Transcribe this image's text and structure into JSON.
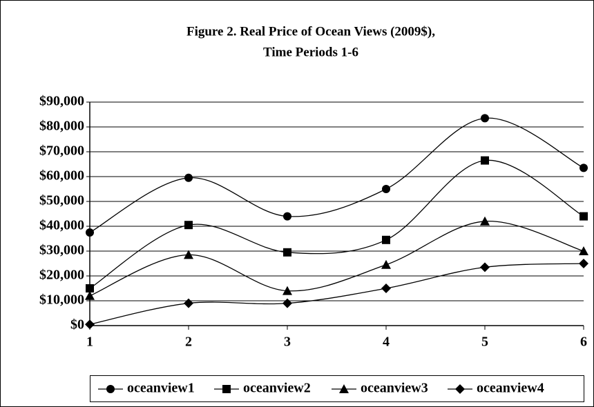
{
  "chart_data": {
    "type": "line",
    "title": "Figure 2.  Real Price of Ocean Views (2009$),",
    "subtitle": "Time Periods 1-6",
    "x": [
      1,
      2,
      3,
      4,
      5,
      6
    ],
    "xlim": [
      1,
      6
    ],
    "xticks": [
      1,
      2,
      3,
      4,
      5,
      6
    ],
    "ylim": [
      0,
      90000
    ],
    "yticks": [
      {
        "value": 0,
        "label": "$0"
      },
      {
        "value": 10000,
        "label": "$10,000"
      },
      {
        "value": 20000,
        "label": "$20,000"
      },
      {
        "value": 30000,
        "label": "$30,000"
      },
      {
        "value": 40000,
        "label": "$40,000"
      },
      {
        "value": 50000,
        "label": "$50,000"
      },
      {
        "value": 60000,
        "label": "$60,000"
      },
      {
        "value": 70000,
        "label": "$70,000"
      },
      {
        "value": 80000,
        "label": "$80,000"
      },
      {
        "value": 90000,
        "label": "$90,000"
      }
    ],
    "grid": true,
    "smooth": true,
    "legend": "bottom",
    "series": [
      {
        "name": "oceanview1",
        "color": "#000000",
        "marker": "circle",
        "values": [
          37500,
          59500,
          44000,
          55000,
          83500,
          63500
        ]
      },
      {
        "name": "oceanview2",
        "color": "#000000",
        "marker": "square",
        "values": [
          15000,
          40500,
          29500,
          34500,
          66500,
          44000
        ]
      },
      {
        "name": "oceanview3",
        "color": "#000000",
        "marker": "triangle",
        "values": [
          12000,
          28500,
          14000,
          24500,
          42000,
          30000
        ]
      },
      {
        "name": "oceanview4",
        "color": "#000000",
        "marker": "diamond",
        "values": [
          500,
          9000,
          9000,
          15000,
          23500,
          25000
        ]
      }
    ]
  }
}
